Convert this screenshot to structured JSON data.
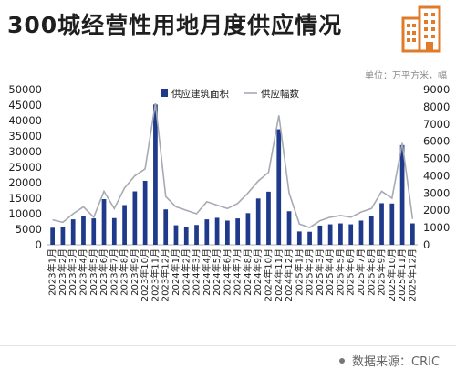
{
  "title": "300城经营性用地月度供应情况",
  "unit_label": "单位：万平方米，幅",
  "source_label": "数据来源：CRIC",
  "colors": {
    "bar": "#1f3a8a",
    "line": "#a6aab3",
    "accent_logo": "#e07b2a"
  },
  "chart_data": {
    "type": "bar+line",
    "categories": [
      "2023年1月",
      "2023年2月",
      "2023年3月",
      "2023年4月",
      "2023年5月",
      "2023年6月",
      "2023年7月",
      "2023年8月",
      "2023年9月",
      "2023年10月",
      "2023年11月",
      "2023年12月",
      "2024年1月",
      "2024年2月",
      "2024年3月",
      "2024年4月",
      "2024年5月",
      "2024年6月",
      "2024年7月",
      "2024年8月",
      "2024年9月",
      "2024年10月",
      "2024年11月",
      "2024年12月",
      "2025年1月",
      "2025年2月",
      "2025年3月",
      "2025年4月",
      "2025年5月",
      "2025年6月",
      "2025年7月",
      "2025年8月",
      "2025年9月",
      "2025年10月",
      "2025年11月",
      "2025年12月"
    ],
    "series": [
      {
        "name": "供应建筑面积",
        "type": "bar",
        "axis": "left",
        "values": [
          5500,
          5800,
          8200,
          9400,
          8500,
          14700,
          8600,
          12800,
          17200,
          20600,
          45200,
          11400,
          6300,
          5800,
          6400,
          8200,
          8700,
          7800,
          8500,
          10200,
          14900,
          17100,
          37200,
          10800,
          4300,
          4200,
          6200,
          6600,
          6900,
          6600,
          7800,
          9200,
          13400,
          13300,
          32100,
          6900
        ]
      },
      {
        "name": "供应幅数",
        "type": "line",
        "axis": "right",
        "values": [
          1450,
          1300,
          1800,
          2200,
          1600,
          3100,
          2100,
          3300,
          4000,
          4400,
          8200,
          2800,
          2200,
          2000,
          1800,
          2500,
          2300,
          2100,
          2400,
          3000,
          3700,
          4200,
          7500,
          3000,
          1200,
          1000,
          1400,
          1600,
          1700,
          1600,
          1900,
          2100,
          3100,
          2700,
          5900,
          1500
        ]
      }
    ],
    "yleft": {
      "min": 0,
      "max": 50000,
      "ticks": [
        0,
        5000,
        10000,
        15000,
        20000,
        25000,
        30000,
        35000,
        40000,
        45000,
        50000
      ]
    },
    "yright": {
      "min": 0,
      "max": 9000,
      "ticks": [
        0,
        1000,
        2000,
        3000,
        4000,
        5000,
        6000,
        7000,
        8000,
        9000
      ]
    },
    "legend_position": "top-center",
    "grid": false
  }
}
